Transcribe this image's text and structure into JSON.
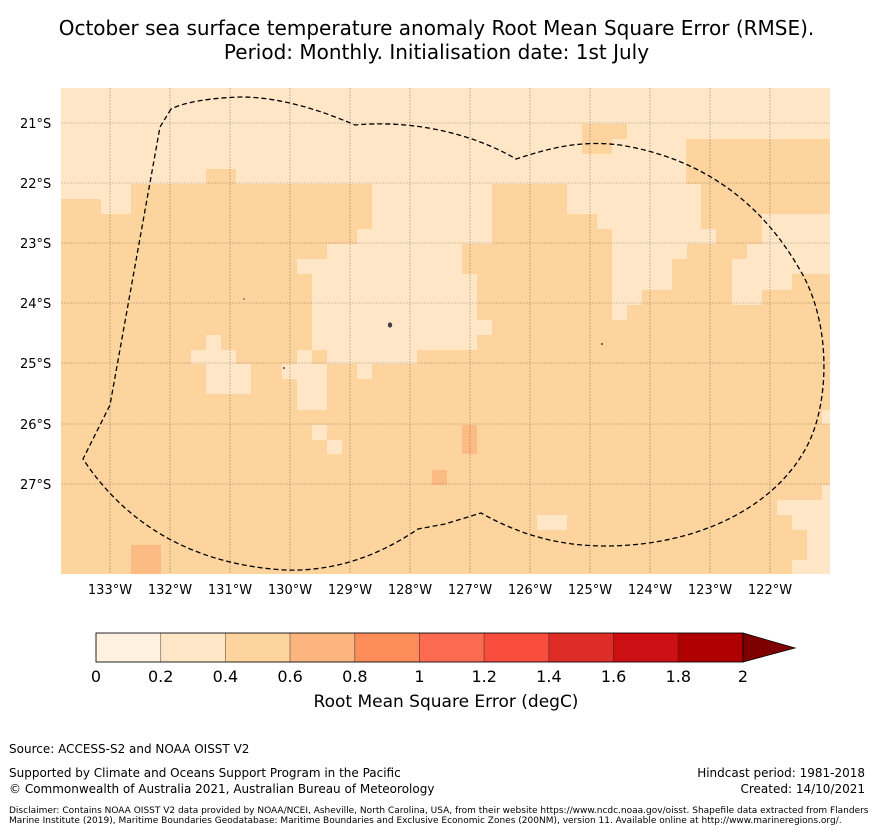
{
  "title": {
    "line1": "October sea surface temperature anomaly Root Mean Square Error (RMSE).",
    "line2": "Period: Monthly. Initialisation date: 1st July"
  },
  "map": {
    "lat_labels": [
      "21°S",
      "22°S",
      "23°S",
      "24°S",
      "25°S",
      "26°S",
      "27°S"
    ],
    "lon_labels": [
      "133°W",
      "132°W",
      "131°W",
      "130°W",
      "129°W",
      "128°W",
      "127°W",
      "126°W",
      "125°W",
      "124°W",
      "123°W",
      "122°W"
    ],
    "region": "Pitcairn Islands EEZ (dashed boundary)",
    "dominant_rmse_range": "0.4–0.6 degC",
    "colors": {
      "0-0.2": "#fff1e0",
      "0.2-0.4": "#fee6c6",
      "0.4-0.6": "#fdd49e",
      "0.6-0.8": "#fdbb84"
    }
  },
  "colorbar": {
    "ticks": [
      "0",
      "0.2",
      "0.4",
      "0.6",
      "0.8",
      "1",
      "1.2",
      "1.4",
      "1.6",
      "1.8",
      "2"
    ],
    "colors": [
      "#fff1e0",
      "#fee6c6",
      "#fdd49e",
      "#fdb580",
      "#fc8d59",
      "#fc6a4f",
      "#f84c3c",
      "#de2d26",
      "#cc0f12",
      "#b00000"
    ],
    "extend_color": "#7f0000",
    "label": "Root Mean Square Error (degC)"
  },
  "footer": {
    "source": "Source: ACCESS-S2 and NOAA OISST V2",
    "supported": "Supported by Climate and Oceans Support Program in the Pacific",
    "copyright": "© Commonwealth of Australia 2021, Australian Bureau of Meteorology",
    "hindcast": "Hindcast period: 1981-2018",
    "created": "Created: 14/10/2021",
    "disclaimer": "Disclaimer: Contains NOAA OISST V2 data provided by NOAA/NCEI, Asheville, North Carolina, USA, from their website https://www.ncdc.noaa.gov/oisst. Shapefile data extracted from Flanders Marine Institute (2019), Maritime Boundaries Geodatabase: Maritime Boundaries and Exclusive Economic Zones (200NM), version 11. Available online at http://www.marineregions.org/."
  }
}
